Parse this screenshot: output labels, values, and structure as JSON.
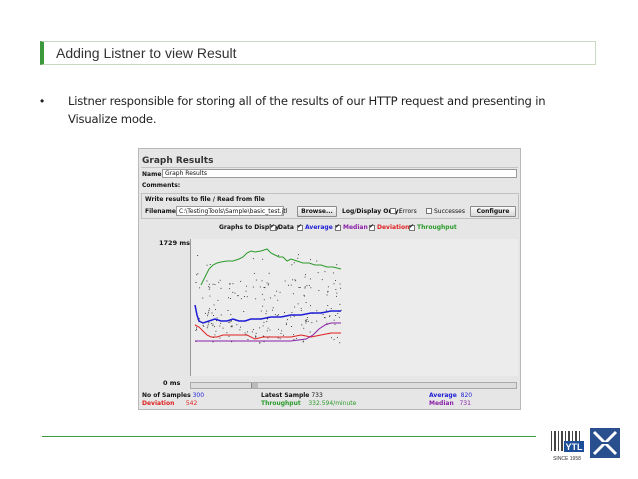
{
  "slide": {
    "title": "Adding Listner to view Result",
    "bullet_symbol": "•",
    "bullet_text": "Listner responsible for storing all of the results of our HTTP request and presenting in Visualize mode."
  },
  "panel": {
    "title": "Graph Results",
    "name_label": "Name:",
    "name_value": "Graph Results",
    "comments_label": "Comments:",
    "write_label": "Write results to file / Read from file",
    "filename_label": "Filename",
    "filename_value": "C:\\TestingTools\\Sample\\basic_test.jtl",
    "browse_label": "Browse...",
    "log_display_label": "Log/Display Only:",
    "errors_label": "Errors",
    "successes_label": "Successes",
    "configure_label": "Configure",
    "graphs_label": "Graphs to Display",
    "legend": [
      {
        "label": "Data",
        "color": "#000000"
      },
      {
        "label": "Average",
        "color": "#1d1dd6"
      },
      {
        "label": "Median",
        "color": "#8a1fa8"
      },
      {
        "label": "Deviation",
        "color": "#e02020"
      },
      {
        "label": "Throughput",
        "color": "#2a9a2a"
      }
    ],
    "y_top": "1729  ms",
    "y_bottom": "0  ms",
    "stats": {
      "samples_label": "No of Samples",
      "samples_value": "300",
      "latest_label": "Latest Sample",
      "latest_value": "733",
      "average_label": "Average",
      "average_value": "820",
      "deviation_label": "Deviation",
      "deviation_value": "542",
      "throughput_label": "Throughput",
      "throughput_value": "332.594/minute",
      "median_label": "Median",
      "median_value": "731"
    }
  },
  "logo": {
    "since": "SINCE 1958",
    "ytl_text": "YTL"
  }
}
